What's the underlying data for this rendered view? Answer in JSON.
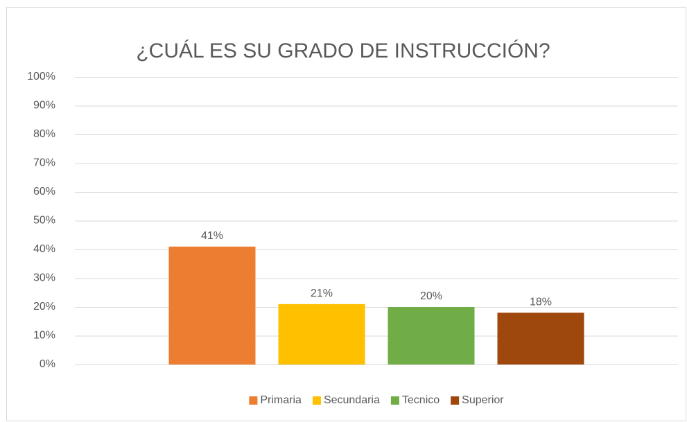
{
  "chart_data": {
    "type": "bar",
    "title": "¿CUÁL ES SU GRADO DE INSTRUCCIÓN?",
    "categories": [
      null
    ],
    "series": [
      {
        "name": "Primaria",
        "color": "#ED7D31",
        "values": [
          41
        ],
        "value_labels": [
          "41%"
        ]
      },
      {
        "name": "Secundaria",
        "color": "#FFC000",
        "values": [
          21
        ],
        "value_labels": [
          "21%"
        ]
      },
      {
        "name": "Tecnico",
        "color": "#70AD47",
        "values": [
          20
        ],
        "value_labels": [
          "20%"
        ]
      },
      {
        "name": "Superior",
        "color": "#9E480E",
        "values": [
          18
        ],
        "value_labels": [
          "18%"
        ]
      }
    ],
    "ylim": [
      0,
      100
    ],
    "yticks": [
      {
        "value": 0,
        "label": "0%"
      },
      {
        "value": 10,
        "label": "10%"
      },
      {
        "value": 20,
        "label": "20%"
      },
      {
        "value": 30,
        "label": "30%"
      },
      {
        "value": 40,
        "label": "40%"
      },
      {
        "value": 50,
        "label": "50%"
      },
      {
        "value": 60,
        "label": "60%"
      },
      {
        "value": 70,
        "label": "70%"
      },
      {
        "value": 80,
        "label": "80%"
      },
      {
        "value": 90,
        "label": "90%"
      },
      {
        "value": 100,
        "label": "100%"
      }
    ],
    "grid": true,
    "legend": "bottom"
  }
}
